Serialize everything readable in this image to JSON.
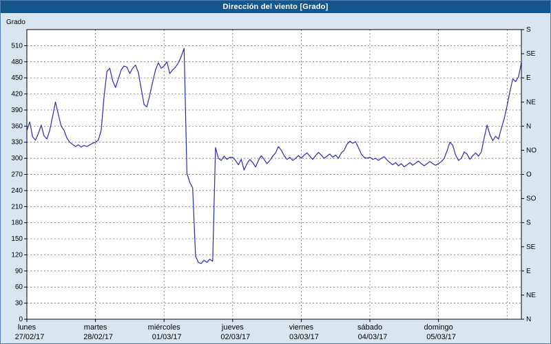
{
  "window": {
    "title": "Dirección del viento [Grado]"
  },
  "colors": {
    "title_bar": "#15568d",
    "window_bg": "#d9e5f1",
    "plot_bg": "#ffffff",
    "grid": "#555555",
    "border": "#000000",
    "line": "#2929b8"
  },
  "chart_data": {
    "type": "line",
    "title": "Dirección del viento [Grado]",
    "ylabel": "Grado",
    "xlabel": "",
    "grid": true,
    "y_range": [
      0,
      540
    ],
    "y_left_ticks": {
      "min": 0,
      "max": 510,
      "step": 30,
      "labels": [
        "0",
        "30",
        "60",
        "90",
        "120",
        "150",
        "180",
        "210",
        "240",
        "270",
        "300",
        "330",
        "360",
        "390",
        "420",
        "450",
        "480",
        "510"
      ]
    },
    "y_right_axis": {
      "step_deg": 45,
      "labels_top_to_bottom": [
        "S",
        "SE",
        "E",
        "NE",
        "N",
        "NO",
        "O",
        "SO",
        "S",
        "SE",
        "E",
        "NE",
        "N"
      ]
    },
    "x_days": [
      {
        "name": "lunes",
        "date": "27/02/17"
      },
      {
        "name": "martes",
        "date": "28/02/17"
      },
      {
        "name": "miércoles",
        "date": "01/03/17"
      },
      {
        "name": "jueves",
        "date": "02/03/17"
      },
      {
        "name": "viernes",
        "date": "03/03/17"
      },
      {
        "name": "sábado",
        "date": "04/03/17"
      },
      {
        "name": "domingo",
        "date": "05/03/17"
      }
    ],
    "hours_per_day": 24,
    "series": [
      {
        "name": "wind-direction-degrees",
        "color": "#2929b8",
        "values": [
          352,
          368,
          340,
          334,
          346,
          362,
          342,
          336,
          352,
          378,
          405,
          382,
          360,
          352,
          338,
          330,
          326,
          322,
          325,
          321,
          324,
          322,
          325,
          328,
          330,
          334,
          352,
          415,
          462,
          468,
          445,
          432,
          448,
          465,
          472,
          470,
          458,
          468,
          474,
          460,
          430,
          400,
          396,
          418,
          442,
          465,
          478,
          468,
          472,
          480,
          458,
          465,
          470,
          478,
          490,
          505,
          272,
          255,
          245,
          118,
          106,
          104,
          110,
          106,
          112,
          108,
          320,
          300,
          296,
          304,
          298,
          302,
          302,
          296,
          288,
          298,
          278,
          290,
          298,
          292,
          284,
          296,
          305,
          298,
          290,
          296,
          304,
          310,
          322,
          315,
          305,
          298,
          302,
          296,
          300,
          305,
          300,
          306,
          310,
          304,
          298,
          305,
          311,
          306,
          300,
          304,
          308,
          302,
          306,
          300,
          310,
          315,
          326,
          332,
          328,
          331,
          320,
          308,
          302,
          300,
          302,
          298,
          300,
          296,
          300,
          303,
          297,
          292,
          288,
          292,
          286,
          290,
          284,
          288,
          292,
          287,
          291,
          295,
          290,
          286,
          290,
          294,
          290,
          287,
          290,
          294,
          300,
          314,
          330,
          324,
          306,
          296,
          300,
          312,
          308,
          298,
          305,
          310,
          304,
          312,
          338,
          362,
          344,
          333,
          341,
          336,
          356,
          374,
          398,
          425,
          448,
          443,
          452,
          478
        ]
      }
    ]
  }
}
